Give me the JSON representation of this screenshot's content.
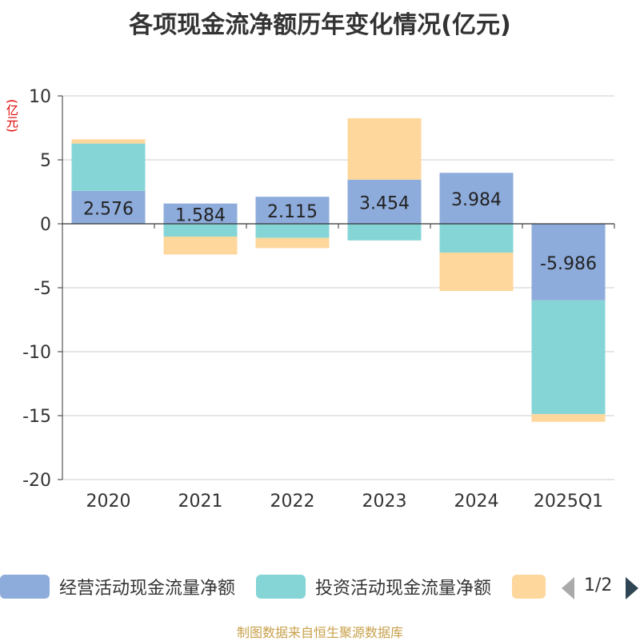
{
  "chart_data": {
    "type": "bar",
    "stacked": true,
    "title": "各项现金流净额历年变化情况(亿元)",
    "unit_label": "(亿元)",
    "categories": [
      "2020",
      "2021",
      "2022",
      "2023",
      "2024",
      "2025Q1"
    ],
    "ylim": [
      -20,
      10
    ],
    "yticks": [
      10,
      5,
      0,
      -5,
      -10,
      -15,
      -20
    ],
    "grid": true,
    "legend_position": "bottom",
    "series": [
      {
        "name": "经营活动现金流量净额",
        "color": "#8eacdb",
        "values": [
          2.576,
          1.584,
          2.115,
          3.454,
          3.984,
          -5.986
        ],
        "show_labels": true
      },
      {
        "name": "投资活动现金流量净额",
        "color": "#86d5d6",
        "values": [
          3.7,
          -1.0,
          -1.1,
          -1.3,
          -2.25,
          -8.9
        ]
      },
      {
        "name": "",
        "color": "#fdd79b",
        "values": [
          0.33,
          -1.4,
          -0.8,
          4.8,
          -3.0,
          -0.6
        ]
      }
    ]
  },
  "legend": {
    "pager": "1/2"
  },
  "source": "制图数据来自恒生聚源数据库"
}
